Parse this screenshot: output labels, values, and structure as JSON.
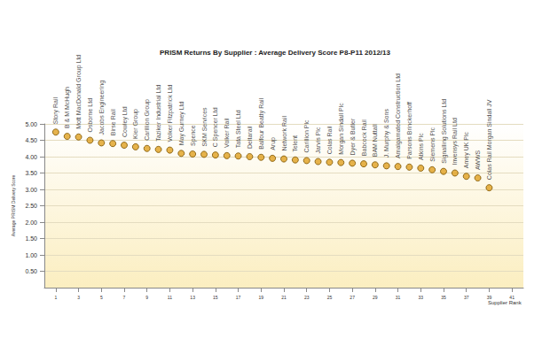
{
  "chart_data": {
    "type": "scatter",
    "title": "PRISM Returns By Supplier : Average Delivery Score P8-P11 2012/13",
    "x_label": "Supplier Rank",
    "y_label": "Average PRISM Delivery Score",
    "x": [
      1,
      2,
      3,
      4,
      5,
      6,
      7,
      8,
      9,
      10,
      11,
      12,
      13,
      14,
      15,
      16,
      17,
      18,
      19,
      20,
      21,
      22,
      23,
      24,
      25,
      26,
      27,
      28,
      29,
      30,
      31,
      32,
      33,
      34,
      35,
      36,
      37,
      38,
      39
    ],
    "values": [
      4.75,
      4.62,
      4.6,
      4.5,
      4.42,
      4.4,
      4.35,
      4.3,
      4.25,
      4.22,
      4.2,
      4.1,
      4.08,
      4.07,
      4.05,
      4.03,
      4.02,
      4.0,
      3.98,
      3.95,
      3.93,
      3.9,
      3.88,
      3.85,
      3.83,
      3.82,
      3.8,
      3.78,
      3.75,
      3.72,
      3.7,
      3.68,
      3.65,
      3.6,
      3.55,
      3.5,
      3.4,
      3.35,
      3.05
    ],
    "point_labels": [
      "Story Rail",
      "B & M McHugh",
      "Mott MacDonald Group Ltd",
      "Osborne Ltd",
      "Jacobs Engineering",
      "Birse Rail",
      "Cowley Ltd",
      "Kier Group",
      "Carillion Group",
      "Taziker Industrial Ltd",
      "Volker Fitzpatrick Ltd",
      "May Gurney Ltd",
      "Spence",
      "SKM Services",
      "C Spencer Ltd",
      "Volker Rail",
      "Tata Steel Ltd",
      "Deltarail",
      "Balfour Beatty Rail",
      "Arup",
      "Network Rail",
      "Telent",
      "Carillion Plc",
      "Jarvis Plc",
      "Colas Rail",
      "Morgan Sindall Plc",
      "Dyer & Butler",
      "Babcock Rail",
      "BAM Nuttall",
      "J. Murphy & Sons",
      "Amalgamated Construction Ltd",
      "Parsons Brinckerhoff",
      "Atkins Plc",
      "Siemens Plc",
      "Signalling Solutions Ltd",
      "Invensys Rail Ltd",
      "Amey UK Plc",
      "AWWS",
      "Colas Rail Morgan Sindall JV"
    ],
    "color": "#e0a020",
    "marker": "circle",
    "grid": true,
    "xlim": [
      0,
      42
    ],
    "xticks": [
      1,
      3,
      5,
      7,
      9,
      11,
      13,
      15,
      17,
      19,
      21,
      23,
      25,
      27,
      29,
      31,
      33,
      35,
      37,
      39,
      41
    ],
    "ylim": [
      0,
      5
    ],
    "yticks": [
      {
        "value": 0.5,
        "label": "0.50"
      },
      {
        "value": 1,
        "label": "1.00"
      },
      {
        "value": 1.5,
        "label": "1.50"
      },
      {
        "value": 2,
        "label": "2.00"
      },
      {
        "value": 2.5,
        "label": "2.50"
      },
      {
        "value": 3,
        "label": "3.00"
      },
      {
        "value": 3.5,
        "label": "3.50"
      },
      {
        "value": 4,
        "label": "4.00"
      },
      {
        "value": 4.5,
        "label": "4.50"
      },
      {
        "value": 5,
        "label": "5.00"
      }
    ]
  }
}
